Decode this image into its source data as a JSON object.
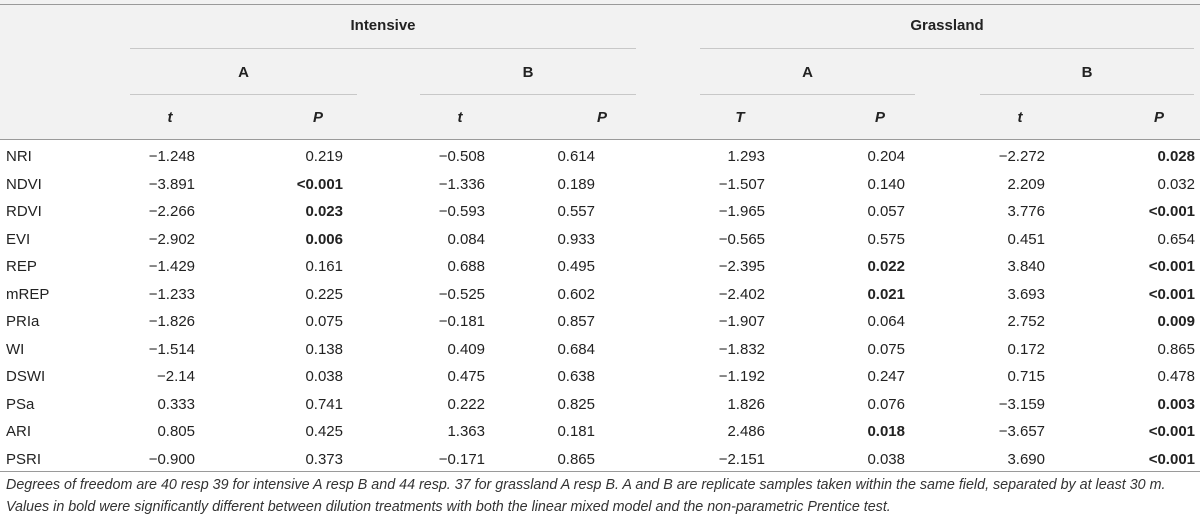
{
  "table": {
    "groups": [
      "Intensive",
      "Grassland"
    ],
    "subgroups": [
      "A",
      "B",
      "A",
      "B"
    ],
    "columns": [
      "t",
      "P",
      "t",
      "P",
      "T",
      "P",
      "t",
      "P"
    ],
    "rows": [
      {
        "label": "NRI",
        "cells": [
          "−1.248",
          "0.219",
          "−0.508",
          "0.614",
          "1.293",
          "0.204",
          "−2.272",
          "0.028"
        ],
        "bold": [
          7
        ]
      },
      {
        "label": "NDVI",
        "cells": [
          "−3.891",
          "<0.001",
          "−1.336",
          "0.189",
          "−1.507",
          "0.140",
          "2.209",
          "0.032"
        ],
        "bold": [
          1
        ]
      },
      {
        "label": "RDVI",
        "cells": [
          "−2.266",
          "0.023",
          "−0.593",
          "0.557",
          "−1.965",
          "0.057",
          "3.776",
          "<0.001"
        ],
        "bold": [
          1,
          7
        ]
      },
      {
        "label": "EVI",
        "cells": [
          "−2.902",
          "0.006",
          "0.084",
          "0.933",
          "−0.565",
          "0.575",
          "0.451",
          "0.654"
        ],
        "bold": [
          1
        ]
      },
      {
        "label": "REP",
        "cells": [
          "−1.429",
          "0.161",
          "0.688",
          "0.495",
          "−2.395",
          "0.022",
          "3.840",
          "<0.001"
        ],
        "bold": [
          5,
          7
        ]
      },
      {
        "label": "mREP",
        "cells": [
          "−1.233",
          "0.225",
          "−0.525",
          "0.602",
          "−2.402",
          "0.021",
          "3.693",
          "<0.001"
        ],
        "bold": [
          5,
          7
        ]
      },
      {
        "label": "PRIa",
        "cells": [
          "−1.826",
          "0.075",
          "−0.181",
          "0.857",
          "−1.907",
          "0.064",
          "2.752",
          "0.009"
        ],
        "bold": [
          7
        ]
      },
      {
        "label": "WI",
        "cells": [
          "−1.514",
          "0.138",
          "0.409",
          "0.684",
          "−1.832",
          "0.075",
          "0.172",
          "0.865"
        ],
        "bold": []
      },
      {
        "label": "DSWI",
        "cells": [
          "−2.14",
          "0.038",
          "0.475",
          "0.638",
          "−1.192",
          "0.247",
          "0.715",
          "0.478"
        ],
        "bold": []
      },
      {
        "label": "PSa",
        "cells": [
          "0.333",
          "0.741",
          "0.222",
          "0.825",
          "1.826",
          "0.076",
          "−3.159",
          "0.003"
        ],
        "bold": [
          7
        ]
      },
      {
        "label": "ARI",
        "cells": [
          "0.805",
          "0.425",
          "1.363",
          "0.181",
          "2.486",
          "0.018",
          "−3.657",
          "<0.001"
        ],
        "bold": [
          5,
          7
        ]
      },
      {
        "label": "PSRI",
        "cells": [
          "−0.900",
          "0.373",
          "−0.171",
          "0.865",
          "−2.151",
          "0.038",
          "3.690",
          "<0.001"
        ],
        "bold": [
          7
        ]
      }
    ]
  },
  "footnote": "Degrees of freedom are 40 resp 39 for intensive A resp B and 44 resp. 37 for grassland A resp B. A and B are replicate samples taken within the same field, separated by at least 30 m. Values in bold were significantly different between dilution treatments with both the linear mixed model and the non-parametric Prentice test."
}
